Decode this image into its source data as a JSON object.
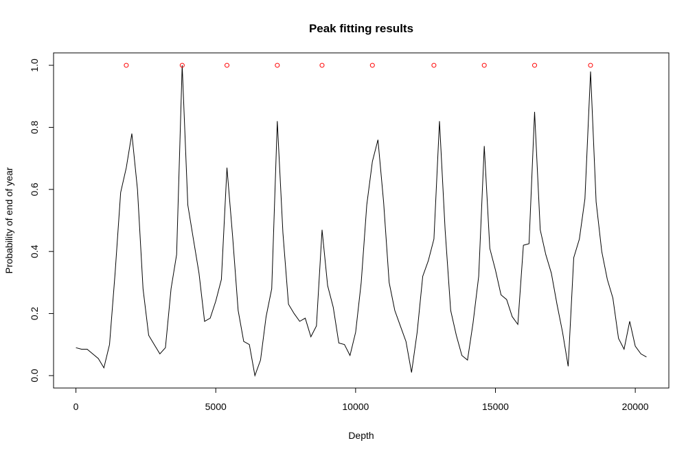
{
  "chart_data": {
    "type": "line",
    "title": "Peak fitting results",
    "xlabel": "Depth",
    "ylabel": "Probability of end of year",
    "xlim": [
      -800,
      21200
    ],
    "ylim": [
      -0.04,
      1.04
    ],
    "x_ticks": [
      0,
      5000,
      10000,
      15000,
      20000
    ],
    "x_tick_labels": [
      "0",
      "5000",
      "10000",
      "15000",
      "20000"
    ],
    "y_ticks": [
      0.0,
      0.2,
      0.4,
      0.6,
      0.8,
      1.0
    ],
    "y_tick_labels": [
      "0.0",
      "0.2",
      "0.4",
      "0.6",
      "0.8",
      "1.0"
    ],
    "grid": false,
    "legend": "none",
    "colors": {
      "line": "#000000",
      "peaks": "#ff0000",
      "frame": "#000000"
    },
    "series": [
      {
        "style": "line",
        "x": [
          0,
          200,
          400,
          600,
          800,
          1000,
          1200,
          1400,
          1600,
          1800,
          2000,
          2200,
          2400,
          2600,
          2800,
          3000,
          3200,
          3400,
          3600,
          3800,
          4000,
          4200,
          4400,
          4600,
          4800,
          5000,
          5200,
          5400,
          5600,
          5800,
          6000,
          6200,
          6400,
          6600,
          6800,
          7000,
          7200,
          7400,
          7600,
          7800,
          8000,
          8200,
          8400,
          8600,
          8800,
          9000,
          9200,
          9400,
          9600,
          9800,
          10000,
          10200,
          10400,
          10600,
          10800,
          11000,
          11200,
          11400,
          11600,
          11800,
          12000,
          12200,
          12400,
          12600,
          12800,
          13000,
          13200,
          13400,
          13600,
          13800,
          14000,
          14200,
          14400,
          14600,
          14800,
          15000,
          15200,
          15400,
          15600,
          15800,
          16000,
          16200,
          16400,
          16600,
          16800,
          17000,
          17200,
          17400,
          17600,
          17800,
          18000,
          18200,
          18400,
          18600,
          18800,
          19000,
          19200,
          19400,
          19600,
          19800,
          20000,
          20200,
          20400
        ],
        "y": [
          0.09,
          0.085,
          0.085,
          0.07,
          0.055,
          0.025,
          0.1,
          0.33,
          0.59,
          0.67,
          0.78,
          0.6,
          0.28,
          0.13,
          0.1,
          0.07,
          0.09,
          0.28,
          0.39,
          1.0,
          0.55,
          0.44,
          0.33,
          0.175,
          0.185,
          0.24,
          0.31,
          0.67,
          0.45,
          0.21,
          0.11,
          0.1,
          0.0,
          0.05,
          0.19,
          0.28,
          0.82,
          0.46,
          0.23,
          0.2,
          0.175,
          0.185,
          0.125,
          0.16,
          0.47,
          0.29,
          0.22,
          0.105,
          0.1,
          0.065,
          0.14,
          0.3,
          0.55,
          0.69,
          0.76,
          0.56,
          0.3,
          0.21,
          0.16,
          0.11,
          0.01,
          0.14,
          0.32,
          0.37,
          0.44,
          0.82,
          0.47,
          0.21,
          0.13,
          0.065,
          0.05,
          0.17,
          0.32,
          0.74,
          0.41,
          0.34,
          0.26,
          0.245,
          0.19,
          0.165,
          0.42,
          0.425,
          0.85,
          0.47,
          0.39,
          0.33,
          0.23,
          0.14,
          0.03,
          0.38,
          0.44,
          0.57,
          0.98,
          0.56,
          0.4,
          0.31,
          0.25,
          0.12,
          0.085,
          0.175,
          0.095,
          0.07,
          0.06
        ]
      },
      {
        "style": "points",
        "x": [
          1800,
          3800,
          5400,
          7200,
          8800,
          10600,
          12800,
          14600,
          16400,
          18400
        ],
        "y": [
          1.0,
          1.0,
          1.0,
          1.0,
          1.0,
          1.0,
          1.0,
          1.0,
          1.0,
          1.0
        ]
      }
    ]
  }
}
